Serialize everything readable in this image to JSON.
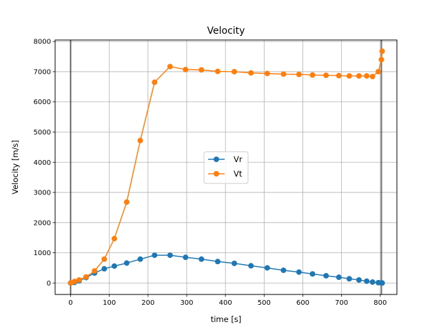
{
  "chart_data": {
    "type": "line",
    "title": "Velocity",
    "xlabel": "time [s]",
    "ylabel": "Velocity [m/s]",
    "xlim": [
      -40,
      843
    ],
    "ylim": [
      -380,
      8050
    ],
    "xticks": [
      0,
      100,
      200,
      300,
      400,
      500,
      600,
      700,
      800
    ],
    "yticks": [
      0,
      1000,
      2000,
      3000,
      4000,
      5000,
      6000,
      7000,
      8000
    ],
    "grid": true,
    "legend": {
      "location": "center",
      "entries": [
        "Vr",
        "Vt"
      ]
    },
    "vlines": [
      0,
      803
    ],
    "series": [
      {
        "name": "Vr",
        "color": "#1f77b4",
        "marker": "circle",
        "x": [
          0,
          10,
          22,
          40,
          62,
          87,
          113,
          145,
          180,
          217,
          257,
          297,
          338,
          380,
          423,
          466,
          508,
          550,
          590,
          625,
          660,
          693,
          720,
          745,
          765,
          780,
          795,
          803,
          805
        ],
        "y": [
          0,
          20,
          70,
          180,
          330,
          470,
          560,
          660,
          790,
          920,
          920,
          850,
          790,
          710,
          650,
          570,
          500,
          420,
          360,
          300,
          240,
          190,
          140,
          100,
          60,
          30,
          10,
          5,
          0
        ]
      },
      {
        "name": "Vt",
        "color": "#ff7f0e",
        "marker": "circle",
        "x": [
          0,
          10,
          22,
          40,
          62,
          87,
          113,
          145,
          180,
          217,
          257,
          297,
          338,
          380,
          423,
          466,
          508,
          550,
          590,
          625,
          660,
          693,
          720,
          745,
          765,
          780,
          795,
          803,
          805
        ],
        "y": [
          0,
          50,
          100,
          200,
          400,
          790,
          1470,
          2680,
          4720,
          6650,
          7170,
          7070,
          7060,
          7010,
          7000,
          6960,
          6940,
          6920,
          6910,
          6890,
          6880,
          6870,
          6860,
          6860,
          6860,
          6840,
          7000,
          7400,
          7680
        ]
      }
    ]
  }
}
